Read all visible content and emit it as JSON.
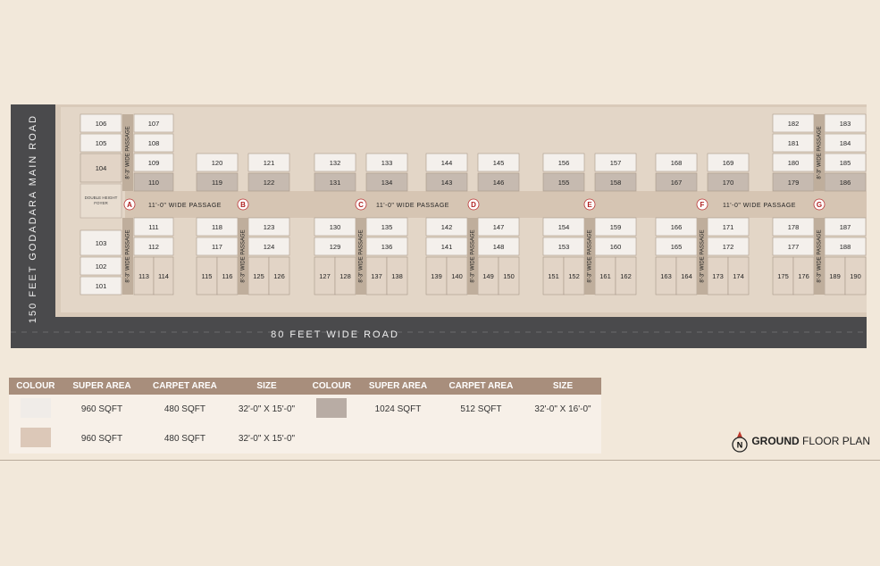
{
  "roads": {
    "main": "150 FEET GODADARA MAIN ROAD",
    "side": "80 FEET WIDE ROAD"
  },
  "foyer": [
    "DOUBLE HEIGHT",
    "FOYER"
  ],
  "junctions": [
    "A",
    "B",
    "C",
    "D",
    "E",
    "F",
    "G"
  ],
  "wide_passages": [
    "11'-0\" WIDE PASSAGE",
    "11'-0\" WIDE PASSAGE",
    "11'-0\" WIDE PASSAGE"
  ],
  "narrow_passages": [
    "8'-3\" WIDE PASSAGE",
    "8'-3\" WIDE PASSAGE",
    "8'-3\" WIDE PASSAGE",
    "8'-3\" WIDE PASSAGE",
    "8'-3\" WIDE PASSAGE",
    "8'-3\" WIDE PASSAGE",
    "8'-3\" WIDE PASSAGE",
    "8'-3\" WIDE PASSAGE",
    "8'-3\" WIDE PASSAGE"
  ],
  "shops": {
    "A": [
      {
        "label": "106",
        "color": "#f4f0ec"
      },
      {
        "label": "105",
        "color": "#f4f0ec"
      },
      {
        "label": "104",
        "color": "#e2d4c6"
      },
      {
        "label": "107",
        "color": "#f4f0ec"
      },
      {
        "label": "108",
        "color": "#f4f0ec"
      },
      {
        "label": "109",
        "color": "#f4f0ec"
      },
      {
        "label": "110",
        "color": "#c6bab0"
      },
      {
        "label": "103",
        "color": "#f4f0ec"
      },
      {
        "label": "102",
        "color": "#f4f0ec"
      },
      {
        "label": "101",
        "color": "#f4f0ec"
      },
      {
        "label": "111",
        "color": "#f4f0ec"
      },
      {
        "label": "112",
        "color": "#f4f0ec"
      },
      {
        "label": "113",
        "color": "#e2d4c6"
      },
      {
        "label": "114",
        "color": "#e2d4c6"
      }
    ],
    "B": [
      {
        "label": "120",
        "color": "#f4f0ec"
      },
      {
        "label": "119",
        "color": "#c6bab0"
      },
      {
        "label": "121",
        "color": "#f4f0ec"
      },
      {
        "label": "122",
        "color": "#c6bab0"
      },
      {
        "label": "118",
        "color": "#f4f0ec"
      },
      {
        "label": "117",
        "color": "#f4f0ec"
      },
      {
        "label": "115",
        "color": "#e2d4c6"
      },
      {
        "label": "116",
        "color": "#e2d4c6"
      },
      {
        "label": "123",
        "color": "#f4f0ec"
      },
      {
        "label": "124",
        "color": "#f4f0ec"
      },
      {
        "label": "125",
        "color": "#e2d4c6"
      },
      {
        "label": "126",
        "color": "#e2d4c6"
      }
    ],
    "C": [
      {
        "label": "132",
        "color": "#f4f0ec"
      },
      {
        "label": "131",
        "color": "#c6bab0"
      },
      {
        "label": "133",
        "color": "#f4f0ec"
      },
      {
        "label": "134",
        "color": "#c6bab0"
      },
      {
        "label": "130",
        "color": "#f4f0ec"
      },
      {
        "label": "129",
        "color": "#f4f0ec"
      },
      {
        "label": "127",
        "color": "#e2d4c6"
      },
      {
        "label": "128",
        "color": "#e2d4c6"
      },
      {
        "label": "135",
        "color": "#f4f0ec"
      },
      {
        "label": "136",
        "color": "#f4f0ec"
      },
      {
        "label": "137",
        "color": "#e2d4c6"
      },
      {
        "label": "138",
        "color": "#e2d4c6"
      }
    ],
    "D": [
      {
        "label": "144",
        "color": "#f4f0ec"
      },
      {
        "label": "143",
        "color": "#c6bab0"
      },
      {
        "label": "145",
        "color": "#f4f0ec"
      },
      {
        "label": "146",
        "color": "#c6bab0"
      },
      {
        "label": "142",
        "color": "#f4f0ec"
      },
      {
        "label": "141",
        "color": "#f4f0ec"
      },
      {
        "label": "139",
        "color": "#e2d4c6"
      },
      {
        "label": "140",
        "color": "#e2d4c6"
      },
      {
        "label": "147",
        "color": "#f4f0ec"
      },
      {
        "label": "148",
        "color": "#f4f0ec"
      },
      {
        "label": "149",
        "color": "#e2d4c6"
      },
      {
        "label": "150",
        "color": "#e2d4c6"
      }
    ],
    "E": [
      {
        "label": "156",
        "color": "#f4f0ec"
      },
      {
        "label": "155",
        "color": "#c6bab0"
      },
      {
        "label": "157",
        "color": "#f4f0ec"
      },
      {
        "label": "158",
        "color": "#c6bab0"
      },
      {
        "label": "154",
        "color": "#f4f0ec"
      },
      {
        "label": "153",
        "color": "#f4f0ec"
      },
      {
        "label": "151",
        "color": "#e2d4c6"
      },
      {
        "label": "152",
        "color": "#e2d4c6"
      },
      {
        "label": "159",
        "color": "#f4f0ec"
      },
      {
        "label": "160",
        "color": "#f4f0ec"
      },
      {
        "label": "161",
        "color": "#e2d4c6"
      },
      {
        "label": "162",
        "color": "#e2d4c6"
      }
    ],
    "F": [
      {
        "label": "168",
        "color": "#f4f0ec"
      },
      {
        "label": "167",
        "color": "#c6bab0"
      },
      {
        "label": "169",
        "color": "#f4f0ec"
      },
      {
        "label": "170",
        "color": "#c6bab0"
      },
      {
        "label": "166",
        "color": "#f4f0ec"
      },
      {
        "label": "165",
        "color": "#f4f0ec"
      },
      {
        "label": "163",
        "color": "#e2d4c6"
      },
      {
        "label": "164",
        "color": "#e2d4c6"
      },
      {
        "label": "171",
        "color": "#f4f0ec"
      },
      {
        "label": "172",
        "color": "#f4f0ec"
      },
      {
        "label": "173",
        "color": "#e2d4c6"
      },
      {
        "label": "174",
        "color": "#e2d4c6"
      }
    ],
    "G": [
      {
        "label": "182",
        "color": "#f4f0ec"
      },
      {
        "label": "181",
        "color": "#f4f0ec"
      },
      {
        "label": "180",
        "color": "#f4f0ec"
      },
      {
        "label": "179",
        "color": "#c6bab0"
      },
      {
        "label": "183",
        "color": "#f4f0ec"
      },
      {
        "label": "184",
        "color": "#f4f0ec"
      },
      {
        "label": "185",
        "color": "#f4f0ec"
      },
      {
        "label": "186",
        "color": "#c6bab0"
      },
      {
        "label": "178",
        "color": "#f4f0ec"
      },
      {
        "label": "177",
        "color": "#f4f0ec"
      },
      {
        "label": "175",
        "color": "#e2d4c6"
      },
      {
        "label": "176",
        "color": "#e2d4c6"
      },
      {
        "label": "187",
        "color": "#f4f0ec"
      },
      {
        "label": "188",
        "color": "#f4f0ec"
      },
      {
        "label": "189",
        "color": "#e2d4c6"
      },
      {
        "label": "190",
        "color": "#e2d4c6"
      }
    ]
  },
  "legend": {
    "headers": [
      "COLOUR",
      "SUPER AREA",
      "CARPET AREA",
      "SIZE",
      "COLOUR",
      "SUPER AREA",
      "CARPET AREA",
      "SIZE"
    ],
    "rows": [
      [
        {
          "color": "#f0ece8",
          "super": "960 SQFT",
          "carpet": "480 SQFT",
          "size": "32'-0\" X 15'-0\""
        },
        {
          "color": "#b8aca4",
          "super": "1024 SQFT",
          "carpet": "512 SQFT",
          "size": "32'-0\" X 16'-0\""
        }
      ],
      [
        {
          "color": "#dcc8b8",
          "super": "960 SQFT",
          "carpet": "480 SQFT",
          "size": "32'-0\" X 15'-0\""
        }
      ]
    ]
  },
  "title": {
    "north": "N",
    "bold": "GROUND",
    "rest": "FLOOR PLAN"
  }
}
